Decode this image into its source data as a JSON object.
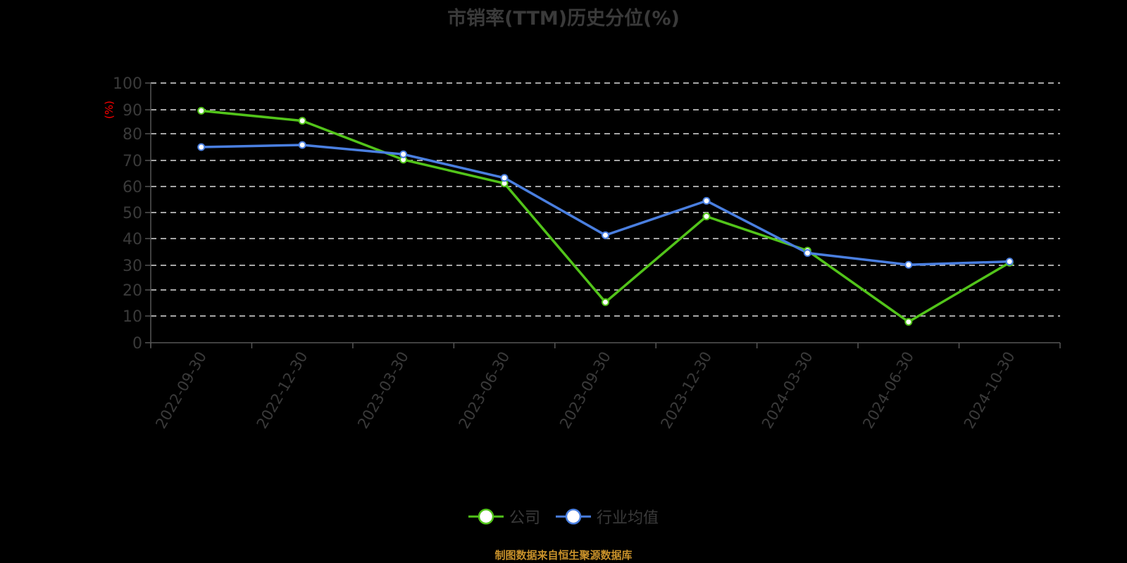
{
  "chart_data": {
    "type": "line",
    "title": "市销率(TTM)历史分位(%)",
    "xlabel": "",
    "ylabel": "(%)",
    "ylim": [
      0,
      100
    ],
    "yticks": [
      0,
      10,
      20,
      30,
      40,
      50,
      60,
      70,
      80,
      90,
      100
    ],
    "grid": "horizontal dashed",
    "legend_position": "bottom-center",
    "categories": [
      "2022-09-30",
      "2022-12-30",
      "2023-03-30",
      "2023-06-30",
      "2023-09-30",
      "2023-12-30",
      "2024-03-30",
      "2024-06-30",
      "2024-10-30"
    ],
    "series": [
      {
        "name": "公司",
        "color": "#52c41a",
        "values": [
          89.6,
          85.4,
          70.3,
          61.2,
          15.3,
          48.5,
          35.5,
          7.8,
          31.0
        ]
      },
      {
        "name": "行业均值",
        "color": "#4a7fe0",
        "values": [
          75.0,
          75.8,
          72.3,
          63.3,
          41.3,
          54.5,
          34.6,
          30.2,
          31.4
        ]
      }
    ]
  },
  "footer": {
    "source": "制图数据来自恒生聚源数据库"
  },
  "colors": {
    "background": "#000000",
    "axis_text": "#3a3a3a",
    "grid": "#dddddd",
    "ylabel": "#ff0000",
    "footer": "#c8912a"
  }
}
